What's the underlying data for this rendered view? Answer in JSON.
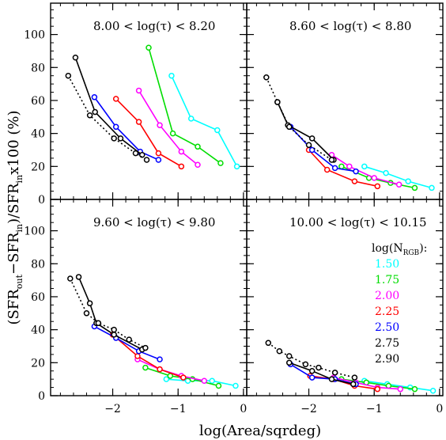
{
  "chart_data": {
    "type": "line",
    "xlabel": "log(Area/sqrdeg)",
    "ylabel": "(SFR_out - SFR_in)/SFR_in x100 (%)",
    "ylabel_parts": {
      "open": "(SFR",
      "sub_out": "out",
      "minus": "−SFR",
      "sub_in1": "in",
      "mid": ")/SFR",
      "sub_in2": "in",
      "close": "x100 (%)"
    },
    "xlim": [
      -2.95,
      0.05
    ],
    "ylim": [
      0,
      119
    ],
    "xticks": [
      -2,
      -1,
      0
    ],
    "xtick_labels": [
      "−2",
      "−1",
      "0"
    ],
    "yticks": [
      0,
      20,
      40,
      60,
      80,
      100
    ],
    "ytick_labels": [
      "0",
      "20",
      "40",
      "60",
      "80",
      "100"
    ],
    "legend": {
      "title": "log(N",
      "title_sub": "RGB",
      "title_close": "):",
      "entries": [
        {
          "label": "1.50",
          "color": "#00ffff"
        },
        {
          "label": "1.75",
          "color": "#00dd00"
        },
        {
          "label": "2.00",
          "color": "#ff00ff"
        },
        {
          "label": "2.25",
          "color": "#ff0000"
        },
        {
          "label": "2.50",
          "color": "#0000ff"
        },
        {
          "label": "2.75",
          "color": "#000000"
        },
        {
          "label": "2.90",
          "color": "#000000"
        }
      ]
    },
    "panels": [
      {
        "title": "8.00 < log(τ) < 8.20",
        "series": [
          {
            "color": "#00ffff",
            "dashed": false,
            "x": [
              -1.1,
              -0.8,
              -0.4,
              -0.1
            ],
            "y": [
              75,
              49,
              42,
              20
            ]
          },
          {
            "color": "#00dd00",
            "dashed": false,
            "x": [
              -1.45,
              -1.08,
              -0.7,
              -0.35
            ],
            "y": [
              92,
              40,
              32,
              22
            ]
          },
          {
            "color": "#ff00ff",
            "dashed": false,
            "x": [
              -1.6,
              -1.28,
              -0.95,
              -0.7
            ],
            "y": [
              66,
              45,
              29,
              21
            ]
          },
          {
            "color": "#ff0000",
            "dashed": false,
            "x": [
              -1.95,
              -1.6,
              -1.3,
              -0.95
            ],
            "y": [
              61,
              47,
              28,
              20
            ]
          },
          {
            "color": "#0000ff",
            "dashed": false,
            "x": [
              -2.28,
              -1.95,
              -1.58,
              -1.3
            ],
            "y": [
              62,
              44,
              29,
              24
            ]
          },
          {
            "color": "#000000",
            "dashed": false,
            "x": [
              -2.57,
              -2.27,
              -1.88,
              -1.55
            ],
            "y": [
              86,
              53,
              37,
              27
            ]
          },
          {
            "color": "#000000",
            "dashed": true,
            "x": [
              -2.68,
              -2.35,
              -1.98,
              -1.65,
              -1.48
            ],
            "y": [
              75,
              51,
              37,
              28,
              24
            ]
          }
        ]
      },
      {
        "title": "8.60 < log(τ) < 8.80",
        "series": [
          {
            "color": "#00ffff",
            "dashed": false,
            "x": [
              -1.15,
              -0.82,
              -0.48,
              -0.12
            ],
            "y": [
              20,
              16,
              11,
              7
            ]
          },
          {
            "color": "#00dd00",
            "dashed": false,
            "x": [
              -1.5,
              -1.08,
              -0.75,
              -0.38
            ],
            "y": [
              20,
              13,
              10,
              7
            ]
          },
          {
            "color": "#ff00ff",
            "dashed": false,
            "x": [
              -1.65,
              -1.38,
              -1.0,
              -0.62
            ],
            "y": [
              27,
              20,
              13,
              9
            ]
          },
          {
            "color": "#ff0000",
            "dashed": false,
            "x": [
              -2.0,
              -1.72,
              -1.3,
              -0.95
            ],
            "y": [
              30,
              18,
              11,
              8
            ]
          },
          {
            "color": "#0000ff",
            "dashed": false,
            "x": [
              -2.28,
              -1.95,
              -1.6,
              -1.28
            ],
            "y": [
              44,
              30,
              19,
              17
            ]
          },
          {
            "color": "#000000",
            "dashed": false,
            "x": [
              -2.48,
              -2.32,
              -1.95,
              -1.62
            ],
            "y": [
              59,
              45,
              37,
              24
            ]
          },
          {
            "color": "#000000",
            "dashed": true,
            "x": [
              -2.65,
              -2.48,
              -2.3,
              -2.0,
              -1.65
            ],
            "y": [
              74,
              59,
              44,
              33,
              24
            ]
          }
        ]
      },
      {
        "title": "9.60 < log(τ) < 9.80",
        "series": [
          {
            "color": "#00ffff",
            "dashed": false,
            "x": [
              -1.18,
              -0.85,
              -0.48,
              -0.12
            ],
            "y": [
              10,
              9,
              9,
              6
            ]
          },
          {
            "color": "#00dd00",
            "dashed": false,
            "x": [
              -1.5,
              -1.12,
              -0.78,
              -0.38
            ],
            "y": [
              17,
              12,
              10,
              6
            ]
          },
          {
            "color": "#ff00ff",
            "dashed": false,
            "x": [
              -1.62,
              -1.28,
              -0.95,
              -0.6
            ],
            "y": [
              22,
              16,
              12,
              9
            ]
          },
          {
            "color": "#ff0000",
            "dashed": false,
            "x": [
              -2.0,
              -1.62,
              -1.28,
              -0.92
            ],
            "y": [
              37,
              24,
              16,
              11
            ]
          },
          {
            "color": "#0000ff",
            "dashed": false,
            "x": [
              -2.28,
              -1.95,
              -1.6,
              -1.28
            ],
            "y": [
              42,
              35,
              27,
              22
            ]
          },
          {
            "color": "#000000",
            "dashed": false,
            "x": [
              -2.52,
              -2.35,
              -2.25,
              -1.98,
              -1.55
            ],
            "y": [
              72,
              56,
              44,
              37,
              28
            ]
          },
          {
            "color": "#000000",
            "dashed": true,
            "x": [
              -2.65,
              -2.4,
              -2.22,
              -1.98,
              -1.75,
              -1.5
            ],
            "y": [
              71,
              50,
              44,
              40,
              34,
              29
            ]
          }
        ]
      },
      {
        "title": "10.00 < log(τ) < 10.15",
        "series": [
          {
            "color": "#00ffff",
            "dashed": false,
            "x": [
              -1.15,
              -0.8,
              -0.45,
              -0.1
            ],
            "y": [
              9,
              7,
              5,
              3
            ]
          },
          {
            "color": "#00dd00",
            "dashed": false,
            "x": [
              -1.5,
              -1.12,
              -0.78,
              -0.38
            ],
            "y": [
              10,
              8,
              6,
              4
            ]
          },
          {
            "color": "#ff00ff",
            "dashed": false,
            "x": [
              -1.62,
              -1.28,
              -0.95,
              -0.6
            ],
            "y": [
              11,
              8,
              5,
              4
            ]
          },
          {
            "color": "#ff0000",
            "dashed": false,
            "x": [
              -1.98,
              -1.62,
              -1.3,
              -0.95
            ],
            "y": [
              12,
              10,
              6,
              4
            ]
          },
          {
            "color": "#0000ff",
            "dashed": false,
            "x": [
              -2.28,
              -1.95,
              -1.6,
              -1.28
            ],
            "y": [
              19,
              11,
              10,
              7
            ]
          },
          {
            "color": "#000000",
            "dashed": false,
            "x": [
              -2.3,
              -1.95,
              -1.65,
              -1.32
            ],
            "y": [
              20,
              15,
              10,
              7
            ]
          },
          {
            "color": "#000000",
            "dashed": true,
            "x": [
              -2.62,
              -2.45,
              -2.3,
              -2.05,
              -1.85,
              -1.6,
              -1.3
            ],
            "y": [
              32,
              27,
              24,
              19,
              17,
              14,
              11
            ]
          }
        ]
      }
    ]
  }
}
